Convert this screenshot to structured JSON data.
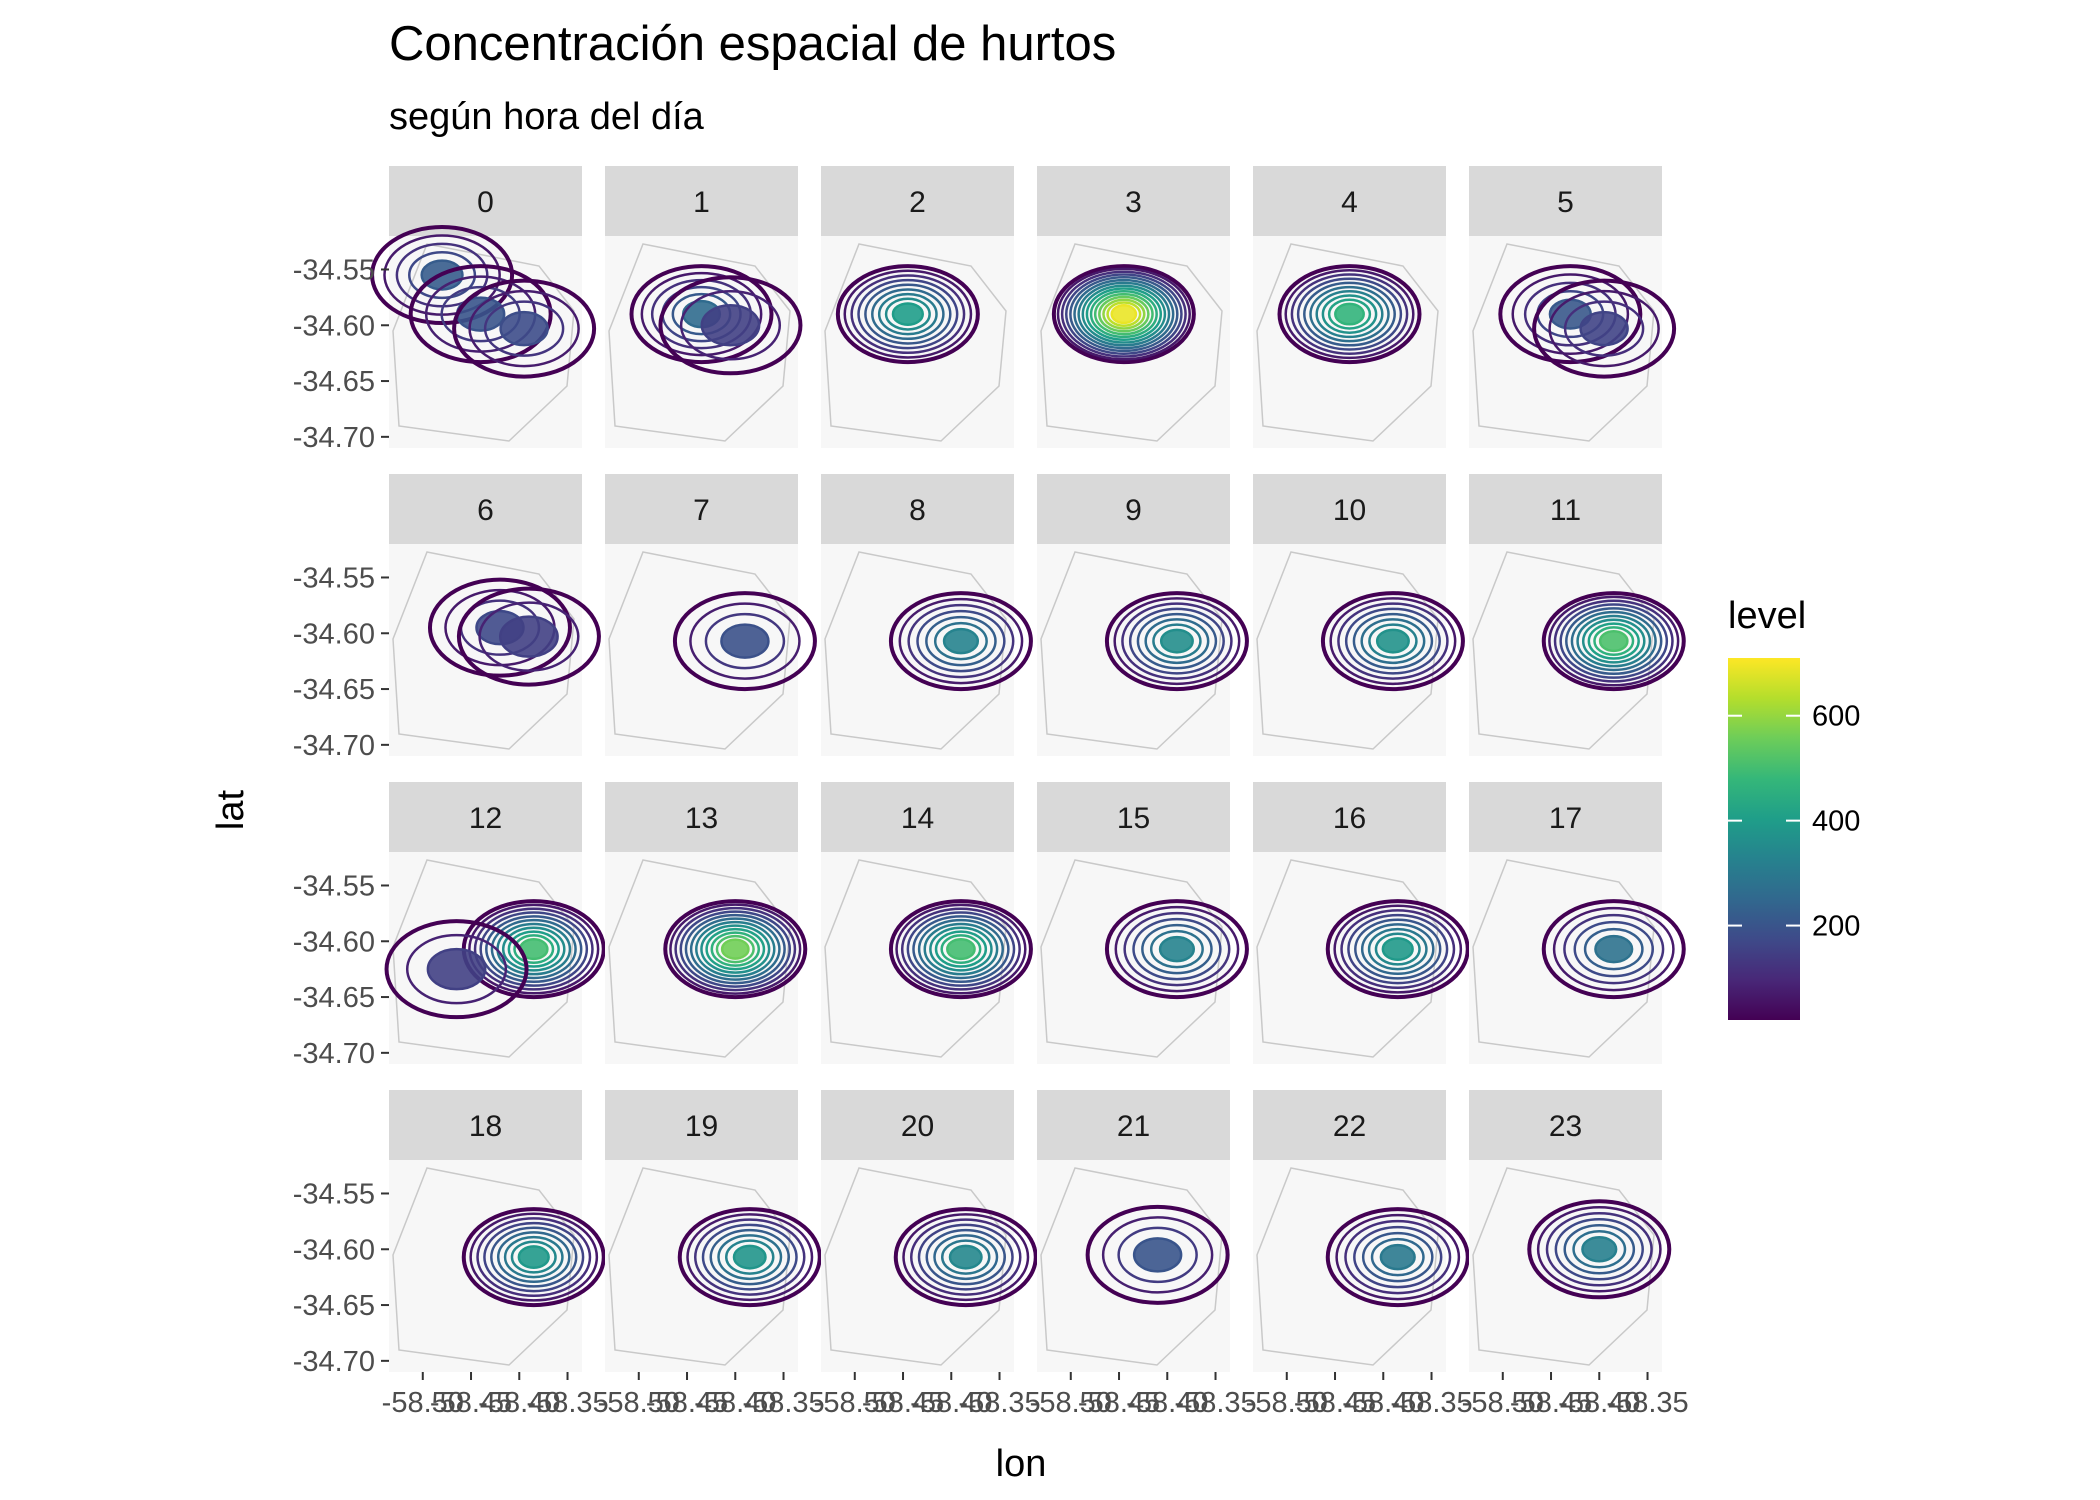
{
  "chart_data": {
    "type": "contour",
    "title": "Concentración espacial de hurtos",
    "subtitle": "según hora del día",
    "xlabel": "lon",
    "ylabel": "lat",
    "facets": [
      "0",
      "1",
      "2",
      "3",
      "4",
      "5",
      "6",
      "7",
      "8",
      "9",
      "10",
      "11",
      "12",
      "13",
      "14",
      "15",
      "16",
      "17",
      "18",
      "19",
      "20",
      "21",
      "22",
      "23"
    ],
    "facet_layout": {
      "rows": 4,
      "cols": 6
    },
    "x_ticks": [
      "-58.50",
      "-58.45",
      "-58.40",
      "-58.35"
    ],
    "x_tick_values": [
      -58.5,
      -58.45,
      -58.4,
      -58.35
    ],
    "y_ticks": [
      "-34.55",
      "-34.60",
      "-34.65",
      "-34.70"
    ],
    "y_tick_values": [
      -34.55,
      -34.6,
      -34.65,
      -34.7
    ],
    "xlim": [
      -58.535,
      -58.335
    ],
    "ylim": [
      -34.71,
      -34.52
    ],
    "legend": {
      "title": "level",
      "position": "right",
      "ticks": [
        "200",
        "400",
        "600"
      ],
      "tick_values": [
        200,
        400,
        600
      ],
      "range": [
        20,
        710
      ],
      "colors": [
        "#440154",
        "#482878",
        "#3E4A89",
        "#31688E",
        "#26828E",
        "#1F9E89",
        "#35B779",
        "#6DCD59",
        "#B4DE2C",
        "#FDE725"
      ]
    },
    "panel_background": "#ebebeb",
    "strip_background": "#d9d9d9",
    "series": [
      {
        "name": "0",
        "hotspots": [
          {
            "lon": -58.48,
            "lat": -34.555,
            "peak": 220
          },
          {
            "lon": -58.44,
            "lat": -34.59,
            "peak": 200
          },
          {
            "lon": -58.395,
            "lat": -34.603,
            "peak": 180
          }
        ]
      },
      {
        "name": "1",
        "hotspots": [
          {
            "lon": -58.435,
            "lat": -34.59,
            "peak": 260
          },
          {
            "lon": -58.405,
            "lat": -34.6,
            "peak": 150
          }
        ]
      },
      {
        "name": "2",
        "hotspots": [
          {
            "lon": -58.445,
            "lat": -34.59,
            "peak": 400
          }
        ]
      },
      {
        "name": "3",
        "hotspots": [
          {
            "lon": -58.445,
            "lat": -34.59,
            "peak": 690
          }
        ]
      },
      {
        "name": "4",
        "hotspots": [
          {
            "lon": -58.435,
            "lat": -34.59,
            "peak": 470
          }
        ]
      },
      {
        "name": "5",
        "hotspots": [
          {
            "lon": -58.43,
            "lat": -34.59,
            "peak": 210
          },
          {
            "lon": -58.395,
            "lat": -34.603,
            "peak": 160
          }
        ]
      },
      {
        "name": "6",
        "hotspots": [
          {
            "lon": -58.42,
            "lat": -34.595,
            "peak": 170
          },
          {
            "lon": -58.39,
            "lat": -34.603,
            "peak": 150
          }
        ]
      },
      {
        "name": "7",
        "hotspots": [
          {
            "lon": -58.39,
            "lat": -34.607,
            "peak": 190
          }
        ]
      },
      {
        "name": "8",
        "hotspots": [
          {
            "lon": -58.39,
            "lat": -34.607,
            "peak": 330
          }
        ]
      },
      {
        "name": "9",
        "hotspots": [
          {
            "lon": -58.39,
            "lat": -34.607,
            "peak": 360
          }
        ]
      },
      {
        "name": "10",
        "hotspots": [
          {
            "lon": -58.39,
            "lat": -34.607,
            "peak": 370
          }
        ]
      },
      {
        "name": "11",
        "hotspots": [
          {
            "lon": -58.385,
            "lat": -34.607,
            "peak": 510
          }
        ]
      },
      {
        "name": "12",
        "hotspots": [
          {
            "lon": -58.385,
            "lat": -34.607,
            "peak": 500
          },
          {
            "lon": -58.465,
            "lat": -34.625,
            "peak": 150
          }
        ]
      },
      {
        "name": "13",
        "hotspots": [
          {
            "lon": -58.4,
            "lat": -34.607,
            "peak": 560
          }
        ]
      },
      {
        "name": "14",
        "hotspots": [
          {
            "lon": -58.39,
            "lat": -34.607,
            "peak": 500
          }
        ]
      },
      {
        "name": "15",
        "hotspots": [
          {
            "lon": -58.39,
            "lat": -34.607,
            "peak": 330
          }
        ]
      },
      {
        "name": "16",
        "hotspots": [
          {
            "lon": -58.385,
            "lat": -34.607,
            "peak": 390
          }
        ]
      },
      {
        "name": "17",
        "hotspots": [
          {
            "lon": -58.385,
            "lat": -34.607,
            "peak": 280
          }
        ]
      },
      {
        "name": "18",
        "hotspots": [
          {
            "lon": -58.385,
            "lat": -34.607,
            "peak": 390
          }
        ]
      },
      {
        "name": "19",
        "hotspots": [
          {
            "lon": -58.385,
            "lat": -34.607,
            "peak": 380
          }
        ]
      },
      {
        "name": "20",
        "hotspots": [
          {
            "lon": -58.385,
            "lat": -34.607,
            "peak": 340
          }
        ]
      },
      {
        "name": "21",
        "hotspots": [
          {
            "lon": -58.41,
            "lat": -34.605,
            "peak": 200
          }
        ]
      },
      {
        "name": "22",
        "hotspots": [
          {
            "lon": -58.385,
            "lat": -34.607,
            "peak": 300
          }
        ]
      },
      {
        "name": "23",
        "hotspots": [
          {
            "lon": -58.4,
            "lat": -34.6,
            "peak": 320
          }
        ]
      }
    ]
  }
}
